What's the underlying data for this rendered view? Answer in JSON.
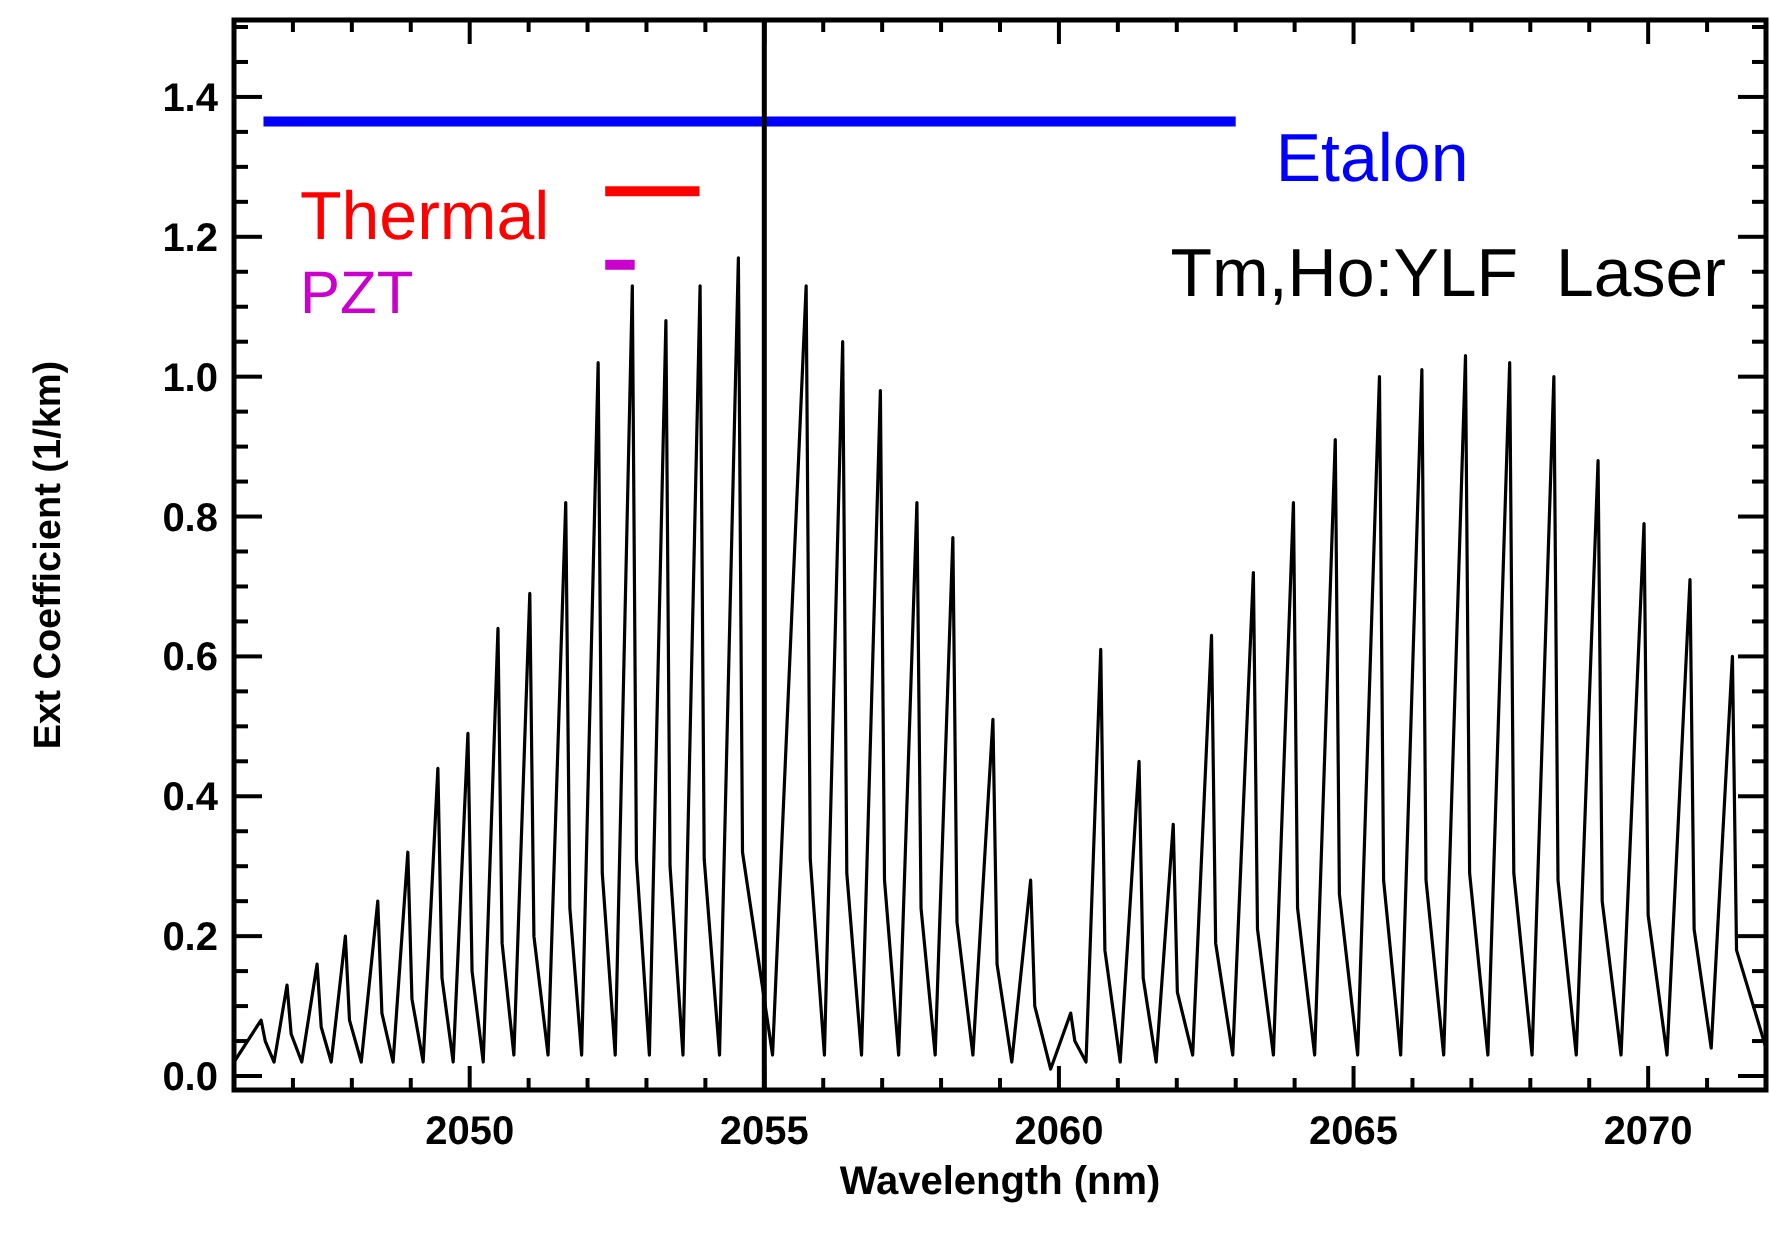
{
  "chart_data": {
    "type": "line",
    "xlabel": "Wavelength (nm)",
    "ylabel": "Ext Coefficient (1/km)",
    "xlim": [
      2046,
      2072
    ],
    "ylim": [
      -0.02,
      1.51
    ],
    "xticks": [
      {
        "value": 2047,
        "label": null
      },
      {
        "value": 2048,
        "label": null
      },
      {
        "value": 2049,
        "label": null
      },
      2050,
      {
        "value": 2051,
        "label": null
      },
      {
        "value": 2052,
        "label": null
      },
      {
        "value": 2053,
        "label": null
      },
      {
        "value": 2054,
        "label": null
      },
      2055,
      {
        "value": 2056,
        "label": null
      },
      {
        "value": 2057,
        "label": null
      },
      {
        "value": 2058,
        "label": null
      },
      {
        "value": 2059,
        "label": null
      },
      2060,
      {
        "value": 2061,
        "label": null
      },
      {
        "value": 2062,
        "label": null
      },
      {
        "value": 2063,
        "label": null
      },
      {
        "value": 2064,
        "label": null
      },
      2065,
      {
        "value": 2066,
        "label": null
      },
      {
        "value": 2067,
        "label": null
      },
      {
        "value": 2068,
        "label": null
      },
      {
        "value": 2069,
        "label": null
      },
      2070,
      {
        "value": 2071,
        "label": null
      }
    ],
    "yticks": [
      {
        "value": 0,
        "label": "0.0"
      },
      {
        "value": 0.05,
        "label": null
      },
      {
        "value": 0.1,
        "label": null
      },
      {
        "value": 0.15,
        "label": null
      },
      {
        "value": 0.2,
        "label": "0.2"
      },
      {
        "value": 0.25,
        "label": null
      },
      {
        "value": 0.3,
        "label": null
      },
      {
        "value": 0.35,
        "label": null
      },
      {
        "value": 0.4,
        "label": "0.4"
      },
      {
        "value": 0.45,
        "label": null
      },
      {
        "value": 0.5,
        "label": null
      },
      {
        "value": 0.55,
        "label": null
      },
      {
        "value": 0.6,
        "label": "0.6"
      },
      {
        "value": 0.65,
        "label": null
      },
      {
        "value": 0.7,
        "label": null
      },
      {
        "value": 0.75,
        "label": null
      },
      {
        "value": 0.8,
        "label": "0.8"
      },
      {
        "value": 0.85,
        "label": null
      },
      {
        "value": 0.9,
        "label": null
      },
      {
        "value": 0.95,
        "label": null
      },
      {
        "value": 1.0,
        "label": "1.0"
      },
      {
        "value": 1.05,
        "label": null
      },
      {
        "value": 1.1,
        "label": null
      },
      {
        "value": 1.15,
        "label": null
      },
      {
        "value": 1.2,
        "label": "1.2"
      },
      {
        "value": 1.25,
        "label": null
      },
      {
        "value": 1.3,
        "label": null
      },
      {
        "value": 1.35,
        "label": null
      },
      {
        "value": 1.4,
        "label": "1.4"
      },
      {
        "value": 1.45,
        "label": null
      },
      {
        "value": 1.5,
        "label": null
      }
    ],
    "grid": false,
    "marker": "none",
    "line_style": "solid",
    "ref_lines": [
      {
        "axis": "x",
        "value": 2055,
        "label": null,
        "color": "#000000"
      }
    ],
    "annotations": [
      "Tm,Ho:YLF  Laser"
    ],
    "series": [
      {
        "color": "#000000",
        "x": [
          2046.0,
          2046.46,
          2046.53,
          2046.68,
          2046.9,
          2046.97,
          2047.15,
          2047.41,
          2047.48,
          2047.65,
          2047.89,
          2047.96,
          2048.16,
          2048.44,
          2048.51,
          2048.7,
          2048.95,
          2049.02,
          2049.21,
          2049.46,
          2049.53,
          2049.72,
          2049.97,
          2050.04,
          2050.23,
          2050.48,
          2050.55,
          2050.75,
          2051.02,
          2051.09,
          2051.33,
          2051.63,
          2051.7,
          2051.9,
          2052.18,
          2052.25,
          2052.47,
          2052.76,
          2052.83,
          2053.05,
          2053.33,
          2053.4,
          2053.62,
          2053.91,
          2053.98,
          2054.24,
          2054.56,
          2054.63,
          2055.14,
          2055.71,
          2055.78,
          2056.02,
          2056.33,
          2056.4,
          2056.65,
          2056.97,
          2057.04,
          2057.28,
          2057.59,
          2057.66,
          2057.9,
          2058.2,
          2058.27,
          2058.54,
          2058.88,
          2058.95,
          2059.2,
          2059.52,
          2059.59,
          2059.86,
          2060.2,
          2060.27,
          2060.46,
          2060.71,
          2060.78,
          2061.04,
          2061.36,
          2061.43,
          2061.65,
          2061.94,
          2062.01,
          2062.27,
          2062.59,
          2062.66,
          2062.95,
          2063.3,
          2063.37,
          2063.64,
          2063.98,
          2064.05,
          2064.34,
          2064.69,
          2064.76,
          2065.07,
          2065.44,
          2065.51,
          2065.8,
          2066.16,
          2066.23,
          2066.53,
          2066.9,
          2066.97,
          2067.28,
          2067.65,
          2067.72,
          2068.03,
          2068.4,
          2068.47,
          2068.78,
          2069.15,
          2069.22,
          2069.54,
          2069.93,
          2070.0,
          2070.32,
          2070.71,
          2070.78,
          2071.07,
          2071.43,
          2071.5,
          2072.0
        ],
        "values": [
          0.02,
          0.08,
          0.05,
          0.02,
          0.13,
          0.06,
          0.02,
          0.16,
          0.07,
          0.02,
          0.2,
          0.08,
          0.02,
          0.25,
          0.09,
          0.02,
          0.32,
          0.11,
          0.02,
          0.44,
          0.14,
          0.02,
          0.49,
          0.15,
          0.02,
          0.64,
          0.19,
          0.03,
          0.69,
          0.2,
          0.03,
          0.82,
          0.24,
          0.03,
          1.02,
          0.29,
          0.03,
          1.13,
          0.31,
          0.03,
          1.08,
          0.3,
          0.03,
          1.13,
          0.31,
          0.03,
          1.17,
          0.32,
          0.03,
          1.13,
          0.31,
          0.03,
          1.05,
          0.29,
          0.03,
          0.98,
          0.28,
          0.03,
          0.82,
          0.24,
          0.03,
          0.77,
          0.22,
          0.03,
          0.51,
          0.16,
          0.02,
          0.28,
          0.1,
          0.01,
          0.09,
          0.05,
          0.02,
          0.61,
          0.18,
          0.02,
          0.45,
          0.14,
          0.02,
          0.36,
          0.12,
          0.03,
          0.63,
          0.19,
          0.03,
          0.72,
          0.21,
          0.03,
          0.82,
          0.24,
          0.03,
          0.91,
          0.26,
          0.03,
          1.0,
          0.28,
          0.03,
          1.01,
          0.28,
          0.03,
          1.03,
          0.29,
          0.03,
          1.02,
          0.29,
          0.03,
          1.0,
          0.28,
          0.03,
          0.88,
          0.25,
          0.03,
          0.79,
          0.23,
          0.03,
          0.71,
          0.21,
          0.04,
          0.6,
          0.18,
          0.04
        ]
      },
      {
        "name": "Etalon",
        "color": "#0000ff",
        "x": [
          2046.5,
          2063.0
        ],
        "values": [
          1.365,
          1.365
        ]
      },
      {
        "name": "Thermal",
        "color": "#ff0000",
        "x": [
          2052.3,
          2053.9
        ],
        "values": [
          1.265,
          1.265
        ]
      },
      {
        "name": "PZT",
        "color": "#cc00cc",
        "x": [
          2052.3,
          2052.8
        ],
        "values": [
          1.16,
          1.16
        ]
      }
    ]
  }
}
